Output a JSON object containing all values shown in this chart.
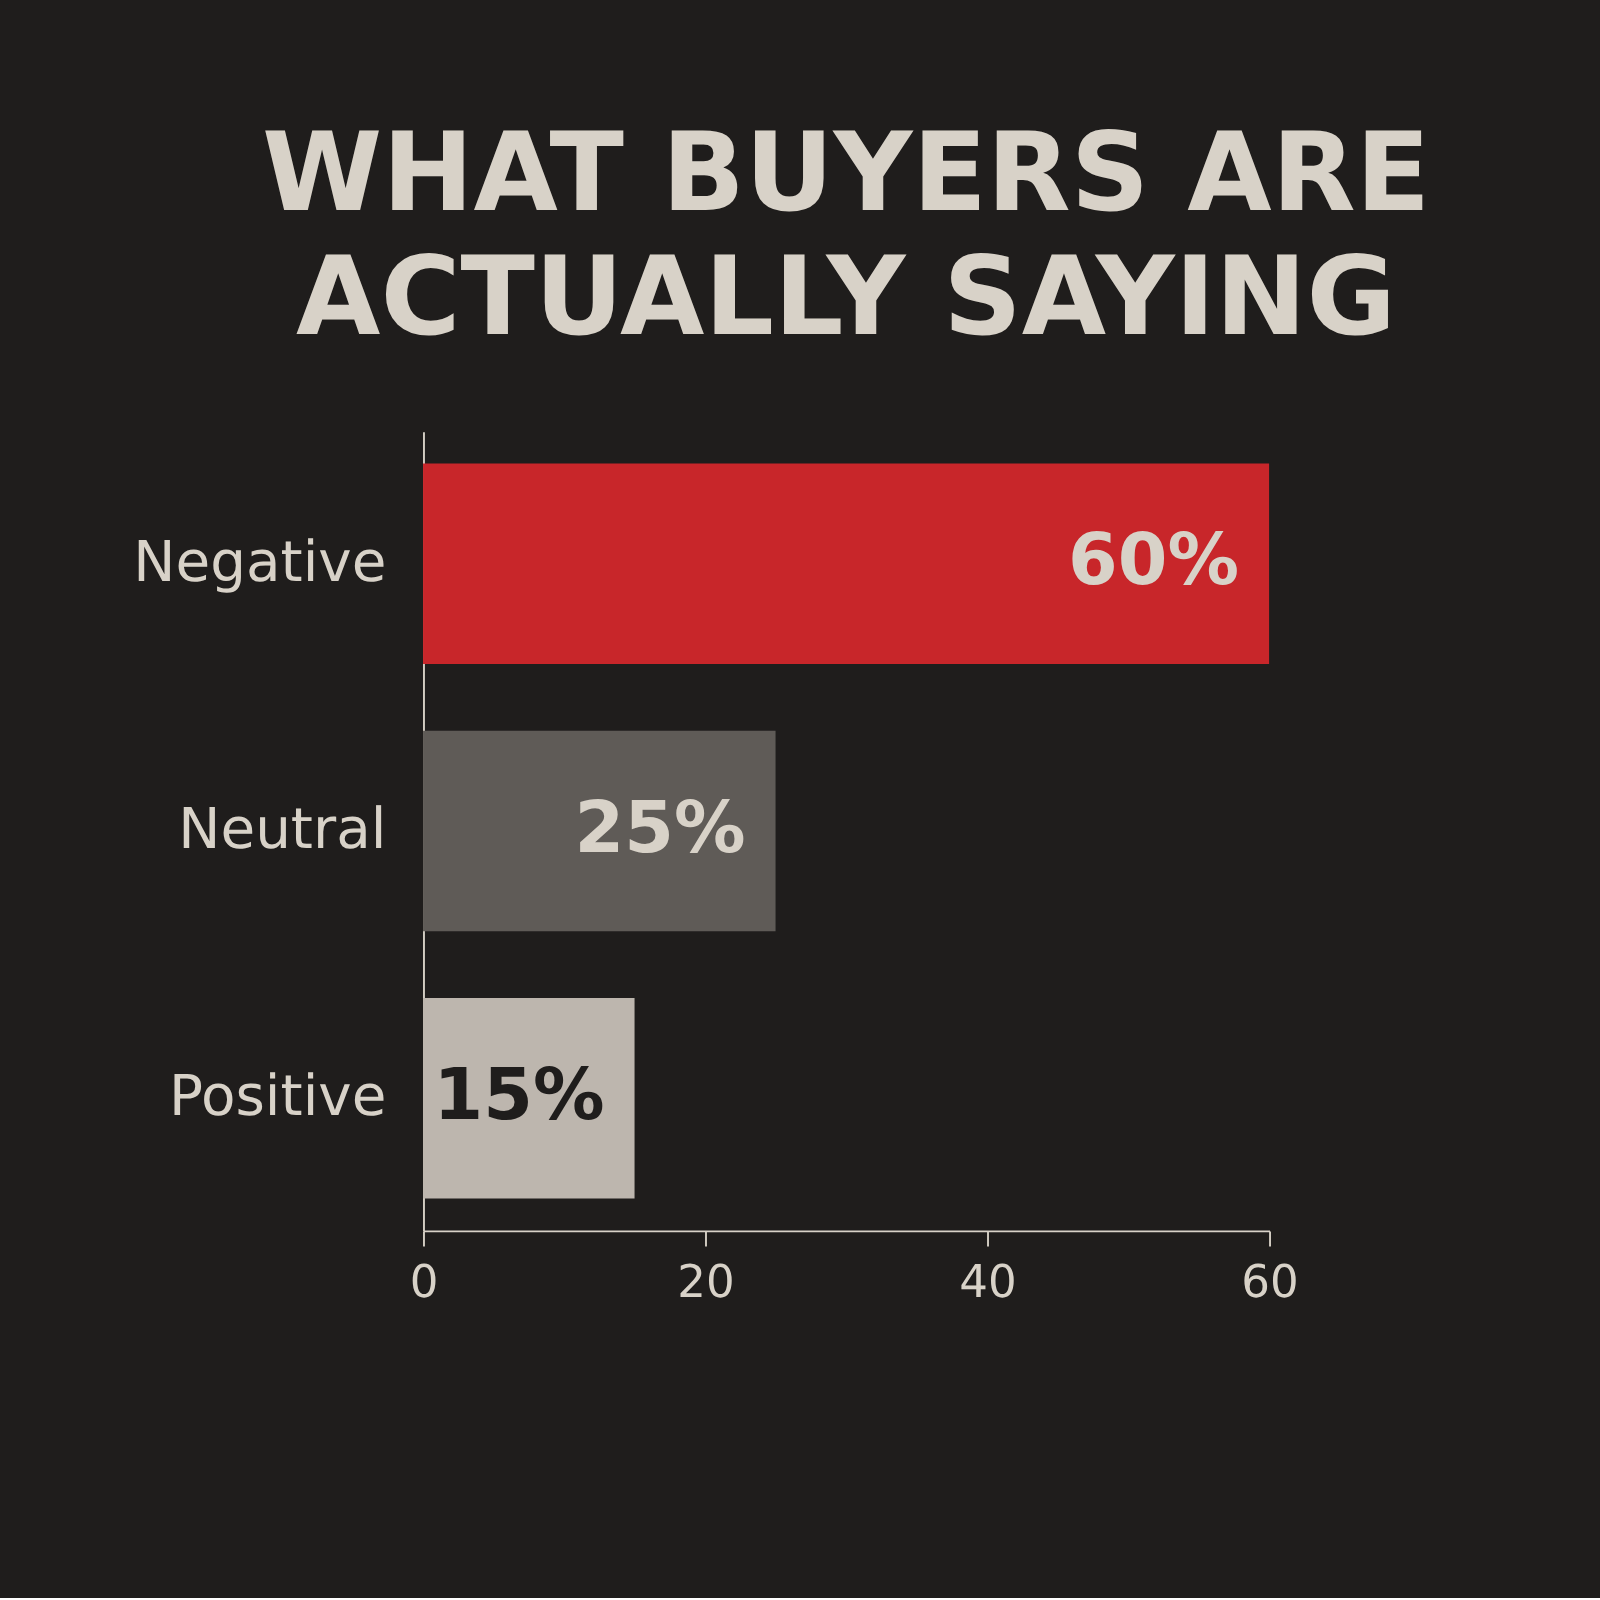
{
  "chart_data": {
    "type": "bar",
    "orientation": "horizontal",
    "title": "WHAT BUYERS ARE ACTUALLY SAYING",
    "categories": [
      "Negative",
      "Neutral",
      "Positive"
    ],
    "values": [
      60,
      25,
      15
    ],
    "colors": [
      "#c8262a",
      "#5f5b57",
      "#bdb6ae"
    ],
    "value_labels": [
      "60%",
      "25%",
      "15%"
    ],
    "xlim": [
      0,
      60
    ],
    "xticks": [
      0,
      20,
      40,
      60
    ],
    "grid": false
  }
}
